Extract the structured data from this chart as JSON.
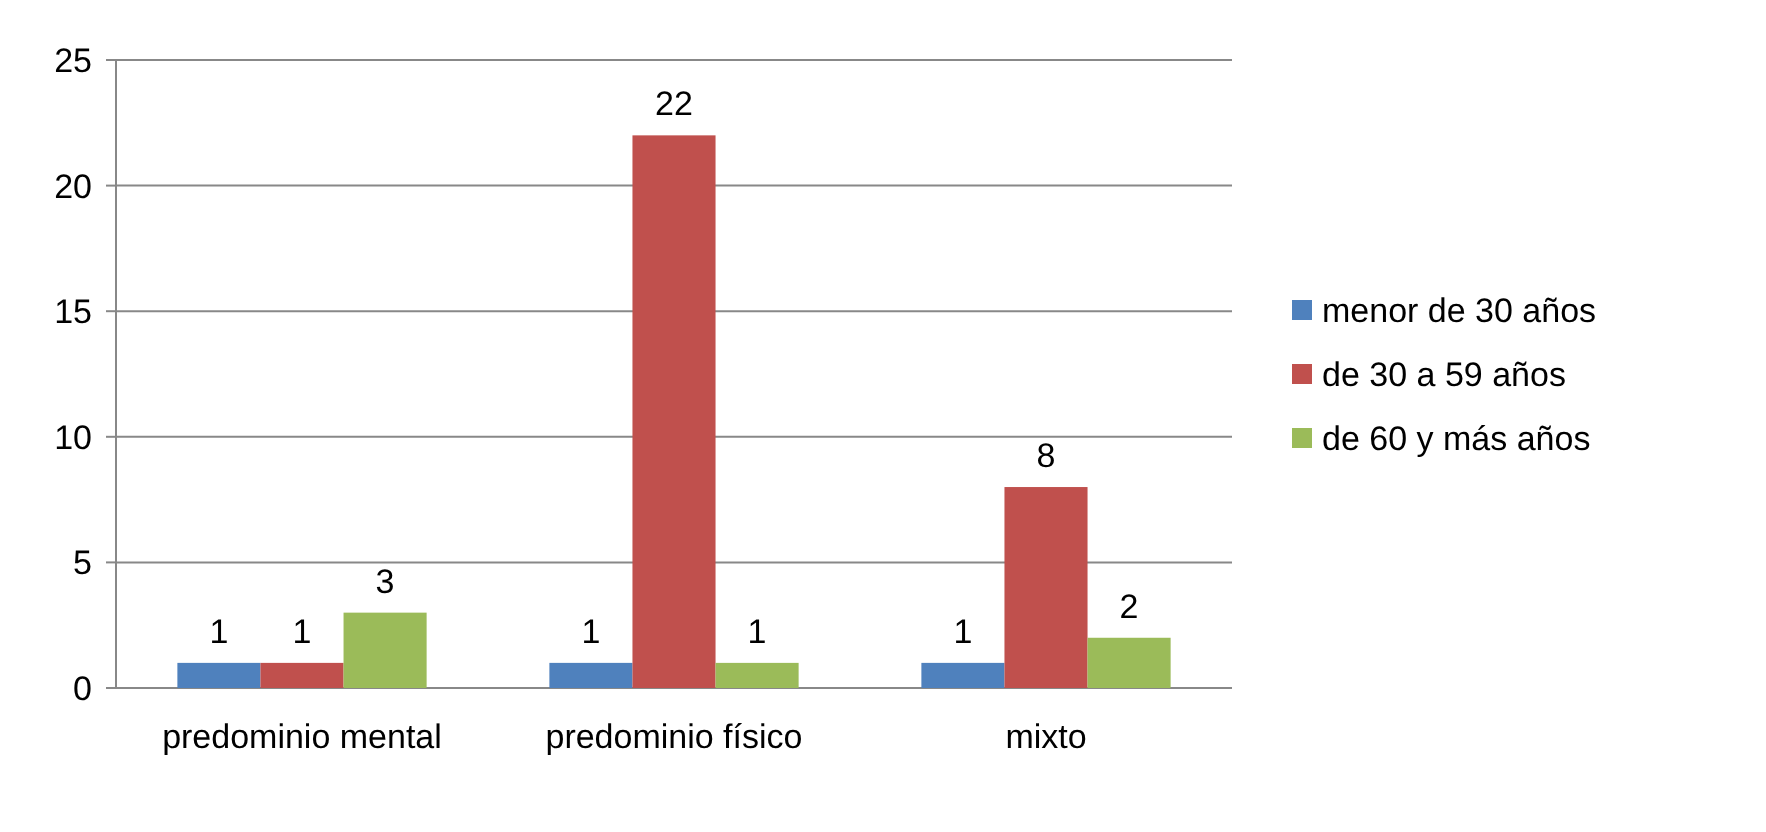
{
  "chart_data": {
    "type": "bar",
    "categories": [
      "predominio mental",
      "predominio físico",
      "mixto"
    ],
    "series": [
      {
        "name": "menor de 30 años",
        "color": "#4f81bd",
        "values": [
          1,
          1,
          1
        ]
      },
      {
        "name": "de 30 a 59 años",
        "color": "#c0504d",
        "values": [
          1,
          22,
          8
        ]
      },
      {
        "name": "de 60 y más años",
        "color": "#9bbb59",
        "values": [
          3,
          1,
          2
        ]
      }
    ],
    "ylim": [
      0,
      25
    ],
    "yticks": [
      0,
      5,
      10,
      15,
      20,
      25
    ],
    "grid": "y",
    "legend": "right",
    "data_labels": true
  }
}
